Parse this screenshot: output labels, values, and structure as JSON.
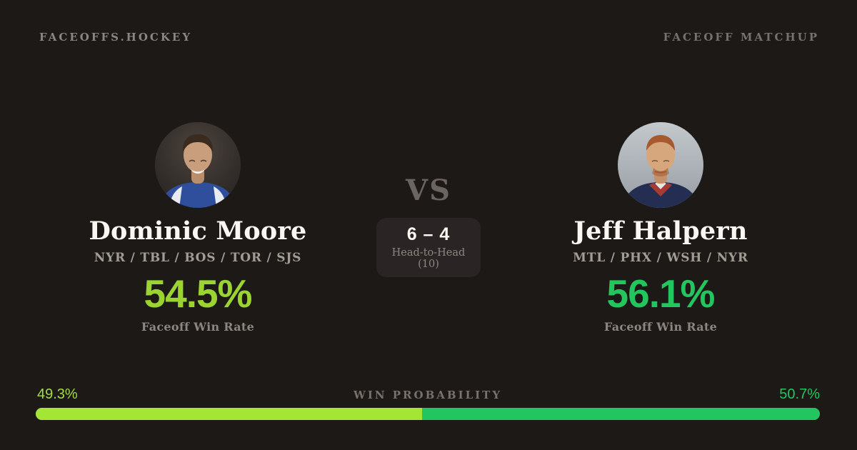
{
  "header": {
    "brand": "FACEOFFS.HOCKEY",
    "label": "FACEOFF MATCHUP"
  },
  "players": {
    "left": {
      "name": "Dominic Moore",
      "teams": "NYR / TBL / BOS / TOR / SJS",
      "win_rate": "54.5%",
      "win_rate_label": "Faceoff Win Rate",
      "avatar": "dominic-moore-headshot"
    },
    "right": {
      "name": "Jeff Halpern",
      "teams": "MTL / PHX / WSH / NYR",
      "win_rate": "56.1%",
      "win_rate_label": "Faceoff Win Rate",
      "avatar": "jeff-halpern-headshot"
    }
  },
  "versus": {
    "vs_label": "VS",
    "head_to_head_score": "6 – 4",
    "head_to_head_label": "Head-to-Head (10)"
  },
  "win_probability": {
    "label": "WIN PROBABILITY",
    "left_value": "49.3%",
    "right_value": "50.7%",
    "left_percent": 49.3,
    "right_percent": 50.7
  },
  "colors": {
    "background": "#1c1917",
    "panel": "#2a2524",
    "lime": "#a3e635",
    "green": "#22c55e",
    "text_primary": "#faf7f2",
    "text_muted": "#a39c94",
    "text_dim": "#8d8680",
    "text_faint": "#78716c",
    "vs_gray": "#6b6460"
  }
}
